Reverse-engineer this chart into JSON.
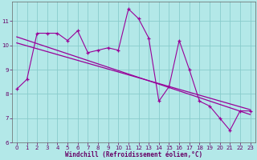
{
  "xlabel": "Windchill (Refroidissement éolien,°C)",
  "bg_color": "#b3e8e8",
  "grid_color": "#88cccc",
  "line_color": "#990099",
  "x_values": [
    0,
    1,
    2,
    3,
    4,
    5,
    6,
    7,
    8,
    9,
    10,
    11,
    12,
    13,
    14,
    15,
    16,
    17,
    18,
    19,
    20,
    21,
    22,
    23
  ],
  "y_data": [
    8.2,
    8.6,
    10.5,
    10.5,
    10.5,
    10.2,
    10.6,
    9.7,
    9.8,
    9.9,
    9.8,
    11.5,
    11.1,
    10.3,
    7.7,
    8.3,
    10.2,
    9.0,
    7.7,
    7.5,
    7.0,
    6.5,
    7.3,
    7.3
  ],
  "reg_line": [
    [
      0,
      23
    ],
    [
      10.35,
      7.15
    ]
  ],
  "reg_line2": [
    [
      0,
      23
    ],
    [
      10.1,
      7.35
    ]
  ],
  "ylim": [
    6,
    11.8
  ],
  "xlim": [
    -0.5,
    23.5
  ],
  "yticks": [
    6,
    7,
    8,
    9,
    10,
    11
  ],
  "xticks": [
    0,
    1,
    2,
    3,
    4,
    5,
    6,
    7,
    8,
    9,
    10,
    11,
    12,
    13,
    14,
    15,
    16,
    17,
    18,
    19,
    20,
    21,
    22,
    23
  ],
  "tick_fontsize": 5.0,
  "xlabel_fontsize": 5.5
}
